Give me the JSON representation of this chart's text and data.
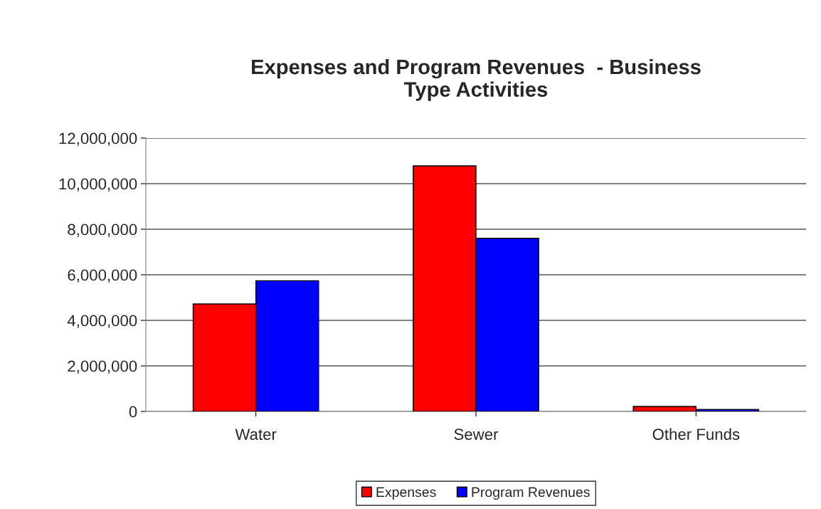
{
  "chart_data": {
    "type": "bar",
    "title": "Expenses and Program Revenues  - Business\nType Activities",
    "categories": [
      "Water",
      "Sewer",
      "Other Funds"
    ],
    "series": [
      {
        "name": "Expenses",
        "color": "#ff0000",
        "values": [
          4720000,
          10780000,
          220000
        ]
      },
      {
        "name": "Program Revenues",
        "color": "#0000ff",
        "values": [
          5740000,
          7600000,
          90000
        ]
      }
    ],
    "ylim": [
      0,
      12000000
    ],
    "yticks": [
      {
        "value": 0,
        "label": "0"
      },
      {
        "value": 2000000,
        "label": "2,000,000"
      },
      {
        "value": 4000000,
        "label": "4,000,000"
      },
      {
        "value": 6000000,
        "label": "6,000,000"
      },
      {
        "value": 8000000,
        "label": "8,000,000"
      },
      {
        "value": 10000000,
        "label": "10,000,000"
      },
      {
        "value": 12000000,
        "label": "12,000,000"
      }
    ],
    "grid": "y",
    "legend": "bottom"
  }
}
